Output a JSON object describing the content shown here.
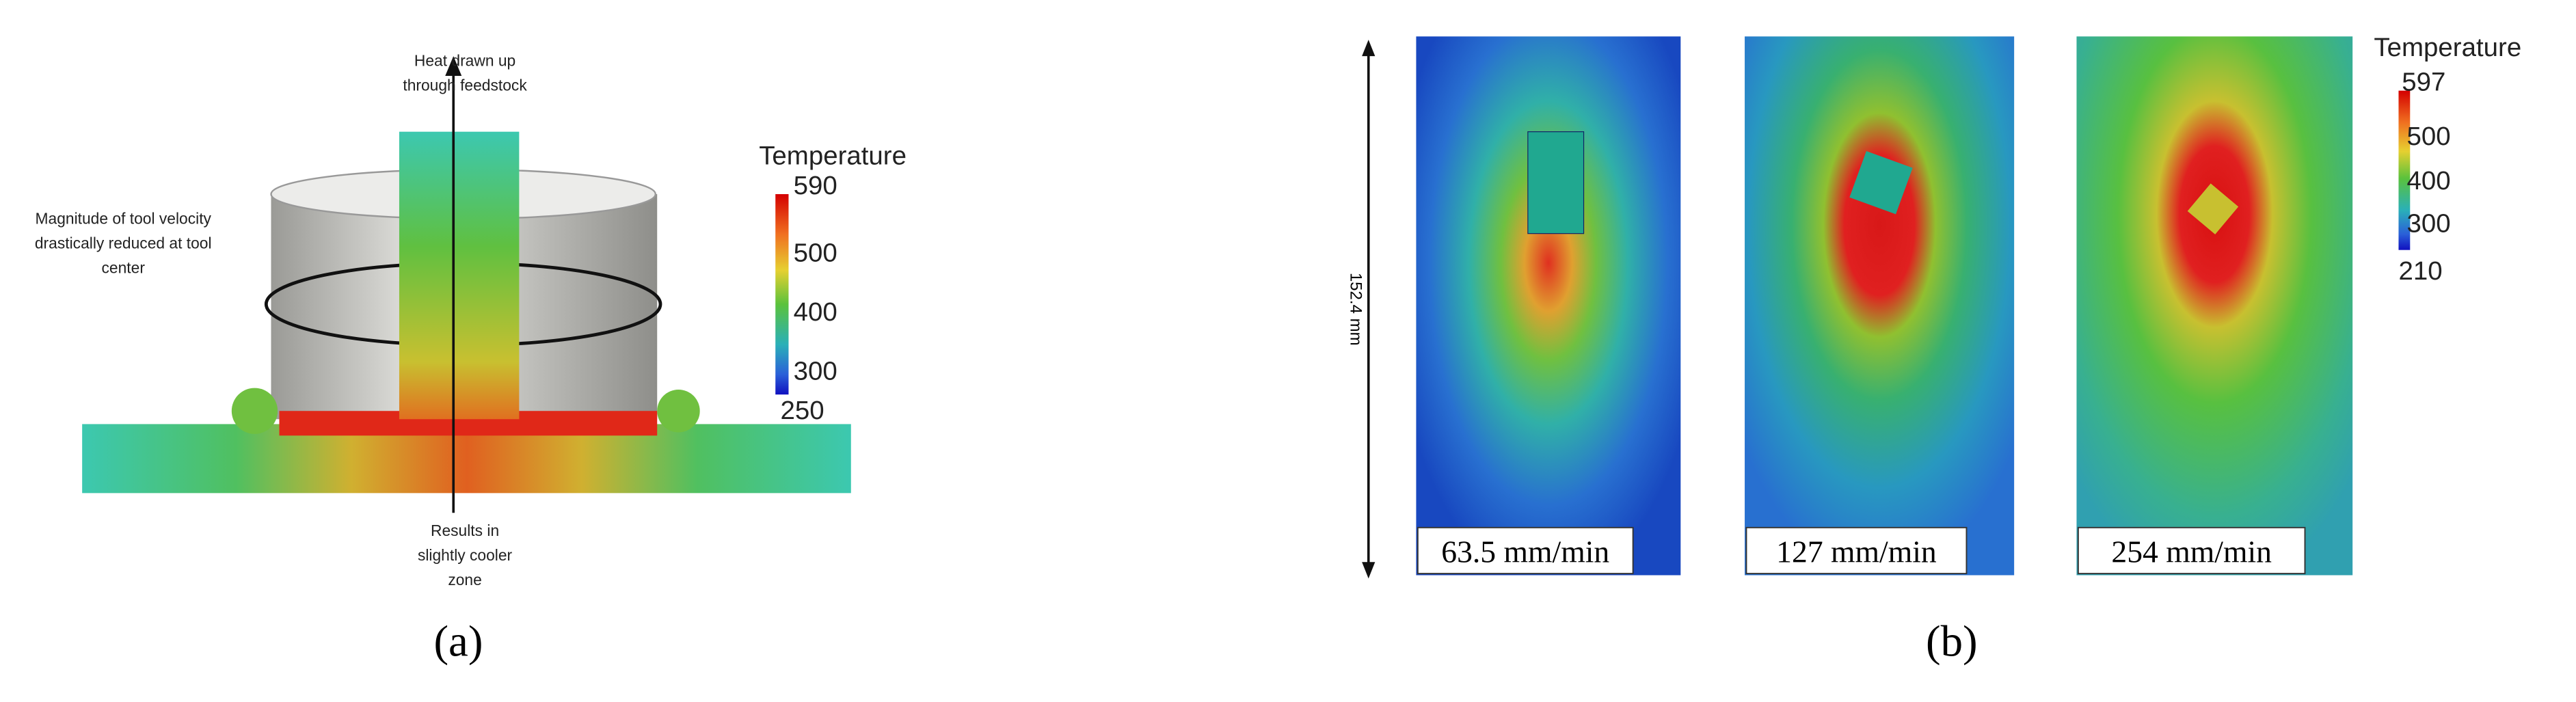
{
  "panel_a": {
    "label": "(a)",
    "annotation_top": [
      "Heat drawn up",
      "through feedstock"
    ],
    "annotation_left": [
      "Magnitude of tool velocity",
      "drastically reduced at tool",
      "center"
    ],
    "annotation_bottom": [
      "Results in",
      "slightly cooler",
      "zone"
    ],
    "colorbar": {
      "title": "Temperature",
      "ticks": [
        "590",
        "500",
        "400",
        "300",
        "250"
      ]
    }
  },
  "panel_b": {
    "label": "(b)",
    "scale": "152.4 mm",
    "speeds": [
      "63.5 mm/min",
      "127 mm/min",
      "254 mm/min"
    ],
    "colorbar": {
      "title": "Temperature",
      "ticks": [
        "597",
        "500",
        "400",
        "300",
        "210"
      ]
    }
  }
}
